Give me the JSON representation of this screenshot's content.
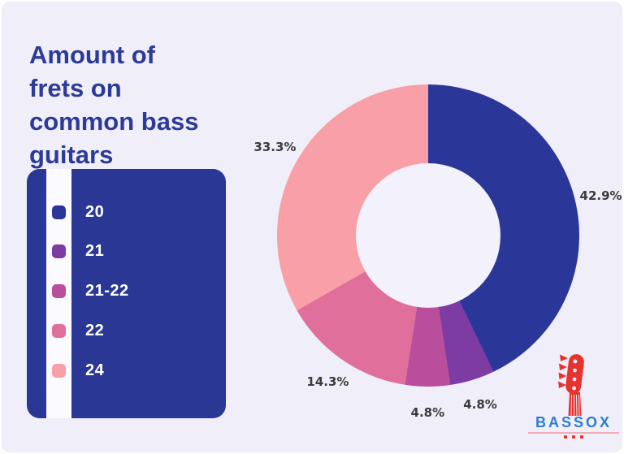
{
  "page": {
    "background": "#FFFFFF",
    "panel_background": "#EFEEF9"
  },
  "title": {
    "text": "Amount of frets on common bass guitars",
    "lines": [
      "Amount of",
      "frets on",
      "common bass",
      "guitars"
    ],
    "color": "#2C3B97"
  },
  "legend": {
    "background": "#2A3795",
    "items": [
      {
        "label": "20",
        "color": "#2B3699"
      },
      {
        "label": "21",
        "color": "#7C3CA3"
      },
      {
        "label": "21-22",
        "color": "#B94E9C"
      },
      {
        "label": "22",
        "color": "#E0709B"
      },
      {
        "label": "24",
        "color": "#F89FA7"
      }
    ]
  },
  "chart_data": {
    "type": "pie",
    "subtype": "donut",
    "title": "Amount of frets on common bass guitars",
    "categories": [
      "20",
      "21",
      "21-22",
      "22",
      "24"
    ],
    "values": [
      42.9,
      4.8,
      4.8,
      14.3,
      33.3
    ],
    "labels": [
      "42.9%",
      "4.8%",
      "4.8%",
      "14.3%",
      "33.3%"
    ],
    "colors": [
      "#2B3699",
      "#7C3CA3",
      "#B94E9C",
      "#E0709B",
      "#F89FA7"
    ],
    "start_angle_deg": 0,
    "direction": "clockwise",
    "donut_hole_ratio": 0.48,
    "hole_color": "#F3F2FC",
    "legend_position": "left",
    "label_color": "#3B3B3B"
  },
  "logo": {
    "brand": "BASSOX",
    "brand_blue": "#2E7CD2",
    "accent_red": "#E8322E"
  }
}
